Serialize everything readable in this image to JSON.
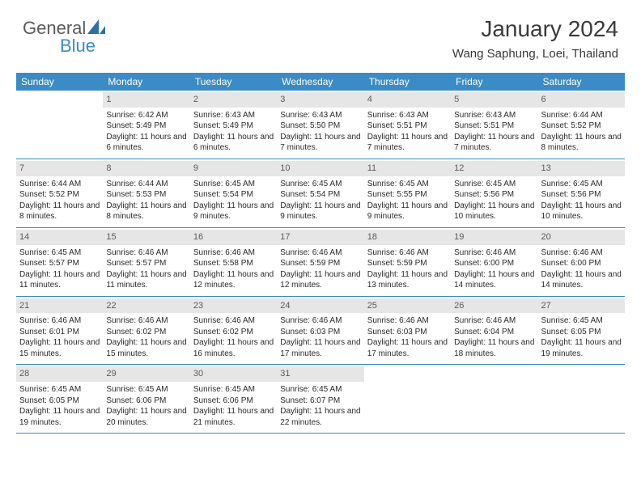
{
  "logo": {
    "text1": "General",
    "text2": "Blue"
  },
  "title": "January 2024",
  "location": "Wang Saphung, Loei, Thailand",
  "colors": {
    "header_bg": "#3b8bc6",
    "header_fg": "#ffffff",
    "daynum_bg": "#e6e6e6",
    "daynum_fg": "#5a5a5a",
    "border": "#3b8bc6",
    "text": "#2a2a2a"
  },
  "weekdays": [
    "Sunday",
    "Monday",
    "Tuesday",
    "Wednesday",
    "Thursday",
    "Friday",
    "Saturday"
  ],
  "weeks": [
    [
      {
        "n": "",
        "sunrise": "",
        "sunset": "",
        "daylight": ""
      },
      {
        "n": "1",
        "sunrise": "Sunrise: 6:42 AM",
        "sunset": "Sunset: 5:49 PM",
        "daylight": "Daylight: 11 hours and 6 minutes."
      },
      {
        "n": "2",
        "sunrise": "Sunrise: 6:43 AM",
        "sunset": "Sunset: 5:49 PM",
        "daylight": "Daylight: 11 hours and 6 minutes."
      },
      {
        "n": "3",
        "sunrise": "Sunrise: 6:43 AM",
        "sunset": "Sunset: 5:50 PM",
        "daylight": "Daylight: 11 hours and 7 minutes."
      },
      {
        "n": "4",
        "sunrise": "Sunrise: 6:43 AM",
        "sunset": "Sunset: 5:51 PM",
        "daylight": "Daylight: 11 hours and 7 minutes."
      },
      {
        "n": "5",
        "sunrise": "Sunrise: 6:43 AM",
        "sunset": "Sunset: 5:51 PM",
        "daylight": "Daylight: 11 hours and 7 minutes."
      },
      {
        "n": "6",
        "sunrise": "Sunrise: 6:44 AM",
        "sunset": "Sunset: 5:52 PM",
        "daylight": "Daylight: 11 hours and 8 minutes."
      }
    ],
    [
      {
        "n": "7",
        "sunrise": "Sunrise: 6:44 AM",
        "sunset": "Sunset: 5:52 PM",
        "daylight": "Daylight: 11 hours and 8 minutes."
      },
      {
        "n": "8",
        "sunrise": "Sunrise: 6:44 AM",
        "sunset": "Sunset: 5:53 PM",
        "daylight": "Daylight: 11 hours and 8 minutes."
      },
      {
        "n": "9",
        "sunrise": "Sunrise: 6:45 AM",
        "sunset": "Sunset: 5:54 PM",
        "daylight": "Daylight: 11 hours and 9 minutes."
      },
      {
        "n": "10",
        "sunrise": "Sunrise: 6:45 AM",
        "sunset": "Sunset: 5:54 PM",
        "daylight": "Daylight: 11 hours and 9 minutes."
      },
      {
        "n": "11",
        "sunrise": "Sunrise: 6:45 AM",
        "sunset": "Sunset: 5:55 PM",
        "daylight": "Daylight: 11 hours and 9 minutes."
      },
      {
        "n": "12",
        "sunrise": "Sunrise: 6:45 AM",
        "sunset": "Sunset: 5:56 PM",
        "daylight": "Daylight: 11 hours and 10 minutes."
      },
      {
        "n": "13",
        "sunrise": "Sunrise: 6:45 AM",
        "sunset": "Sunset: 5:56 PM",
        "daylight": "Daylight: 11 hours and 10 minutes."
      }
    ],
    [
      {
        "n": "14",
        "sunrise": "Sunrise: 6:45 AM",
        "sunset": "Sunset: 5:57 PM",
        "daylight": "Daylight: 11 hours and 11 minutes."
      },
      {
        "n": "15",
        "sunrise": "Sunrise: 6:46 AM",
        "sunset": "Sunset: 5:57 PM",
        "daylight": "Daylight: 11 hours and 11 minutes."
      },
      {
        "n": "16",
        "sunrise": "Sunrise: 6:46 AM",
        "sunset": "Sunset: 5:58 PM",
        "daylight": "Daylight: 11 hours and 12 minutes."
      },
      {
        "n": "17",
        "sunrise": "Sunrise: 6:46 AM",
        "sunset": "Sunset: 5:59 PM",
        "daylight": "Daylight: 11 hours and 12 minutes."
      },
      {
        "n": "18",
        "sunrise": "Sunrise: 6:46 AM",
        "sunset": "Sunset: 5:59 PM",
        "daylight": "Daylight: 11 hours and 13 minutes."
      },
      {
        "n": "19",
        "sunrise": "Sunrise: 6:46 AM",
        "sunset": "Sunset: 6:00 PM",
        "daylight": "Daylight: 11 hours and 14 minutes."
      },
      {
        "n": "20",
        "sunrise": "Sunrise: 6:46 AM",
        "sunset": "Sunset: 6:00 PM",
        "daylight": "Daylight: 11 hours and 14 minutes."
      }
    ],
    [
      {
        "n": "21",
        "sunrise": "Sunrise: 6:46 AM",
        "sunset": "Sunset: 6:01 PM",
        "daylight": "Daylight: 11 hours and 15 minutes."
      },
      {
        "n": "22",
        "sunrise": "Sunrise: 6:46 AM",
        "sunset": "Sunset: 6:02 PM",
        "daylight": "Daylight: 11 hours and 15 minutes."
      },
      {
        "n": "23",
        "sunrise": "Sunrise: 6:46 AM",
        "sunset": "Sunset: 6:02 PM",
        "daylight": "Daylight: 11 hours and 16 minutes."
      },
      {
        "n": "24",
        "sunrise": "Sunrise: 6:46 AM",
        "sunset": "Sunset: 6:03 PM",
        "daylight": "Daylight: 11 hours and 17 minutes."
      },
      {
        "n": "25",
        "sunrise": "Sunrise: 6:46 AM",
        "sunset": "Sunset: 6:03 PM",
        "daylight": "Daylight: 11 hours and 17 minutes."
      },
      {
        "n": "26",
        "sunrise": "Sunrise: 6:46 AM",
        "sunset": "Sunset: 6:04 PM",
        "daylight": "Daylight: 11 hours and 18 minutes."
      },
      {
        "n": "27",
        "sunrise": "Sunrise: 6:45 AM",
        "sunset": "Sunset: 6:05 PM",
        "daylight": "Daylight: 11 hours and 19 minutes."
      }
    ],
    [
      {
        "n": "28",
        "sunrise": "Sunrise: 6:45 AM",
        "sunset": "Sunset: 6:05 PM",
        "daylight": "Daylight: 11 hours and 19 minutes."
      },
      {
        "n": "29",
        "sunrise": "Sunrise: 6:45 AM",
        "sunset": "Sunset: 6:06 PM",
        "daylight": "Daylight: 11 hours and 20 minutes."
      },
      {
        "n": "30",
        "sunrise": "Sunrise: 6:45 AM",
        "sunset": "Sunset: 6:06 PM",
        "daylight": "Daylight: 11 hours and 21 minutes."
      },
      {
        "n": "31",
        "sunrise": "Sunrise: 6:45 AM",
        "sunset": "Sunset: 6:07 PM",
        "daylight": "Daylight: 11 hours and 22 minutes."
      },
      {
        "n": "",
        "sunrise": "",
        "sunset": "",
        "daylight": ""
      },
      {
        "n": "",
        "sunrise": "",
        "sunset": "",
        "daylight": ""
      },
      {
        "n": "",
        "sunrise": "",
        "sunset": "",
        "daylight": ""
      }
    ]
  ]
}
